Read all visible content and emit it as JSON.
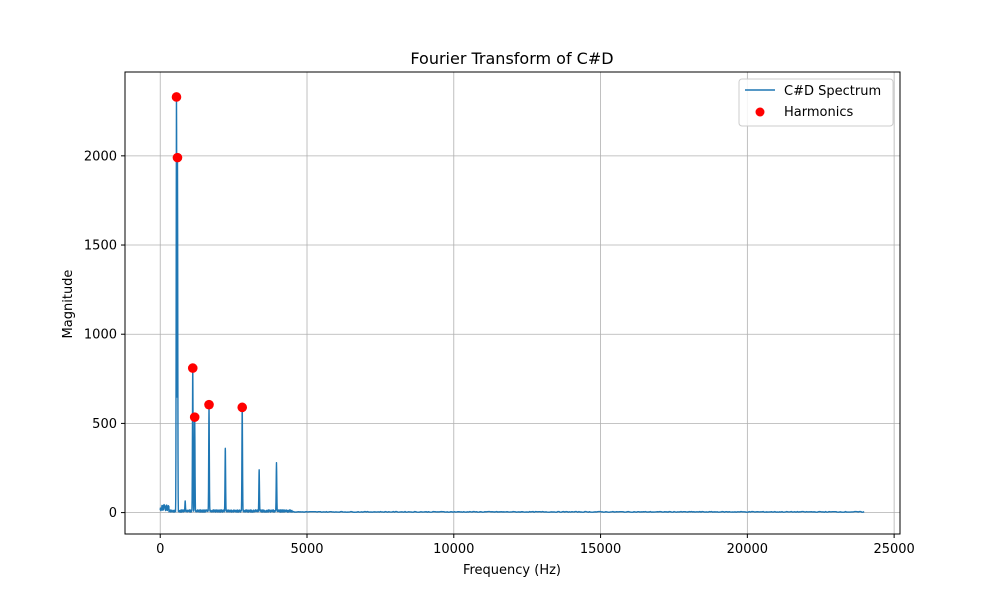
{
  "chart_data": {
    "type": "line",
    "title": "Fourier Transform of C#D",
    "xlabel": "Frequency (Hz)",
    "ylabel": "Magnitude",
    "xlim": [
      -1200,
      25200
    ],
    "ylim": [
      -120,
      2470
    ],
    "xticks": [
      0,
      5000,
      10000,
      15000,
      20000,
      25000
    ],
    "xtick_labels": [
      "0",
      "5000",
      "10000",
      "15000",
      "20000",
      "25000"
    ],
    "yticks": [
      0,
      500,
      1000,
      1500,
      2000
    ],
    "ytick_labels": [
      "0",
      "500",
      "1000",
      "1500",
      "2000"
    ],
    "grid": true,
    "legend_position": "top-right",
    "legend_entries": [
      "C#D Spectrum",
      "Harmonics"
    ],
    "series": [
      {
        "name": "C#D Spectrum",
        "kind": "line",
        "color": "#1f77b4",
        "peaks": [
          {
            "x": 60,
            "y": 40
          },
          {
            "x": 130,
            "y": 45
          },
          {
            "x": 220,
            "y": 42
          },
          {
            "x": 554,
            "y": 2330
          },
          {
            "x": 587,
            "y": 1990
          },
          {
            "x": 850,
            "y": 65
          },
          {
            "x": 1108,
            "y": 810
          },
          {
            "x": 1174,
            "y": 535
          },
          {
            "x": 1662,
            "y": 605
          },
          {
            "x": 2217,
            "y": 360
          },
          {
            "x": 2793,
            "y": 590
          },
          {
            "x": 3370,
            "y": 240
          },
          {
            "x": 3960,
            "y": 280
          }
        ],
        "noise_floor": 4,
        "x_end": 24000
      },
      {
        "name": "Harmonics",
        "kind": "scatter",
        "color": "#ff0000",
        "points": [
          {
            "x": 554,
            "y": 2330
          },
          {
            "x": 587,
            "y": 1990
          },
          {
            "x": 1108,
            "y": 810
          },
          {
            "x": 1174,
            "y": 535
          },
          {
            "x": 1662,
            "y": 605
          },
          {
            "x": 2793,
            "y": 590
          }
        ]
      }
    ]
  }
}
